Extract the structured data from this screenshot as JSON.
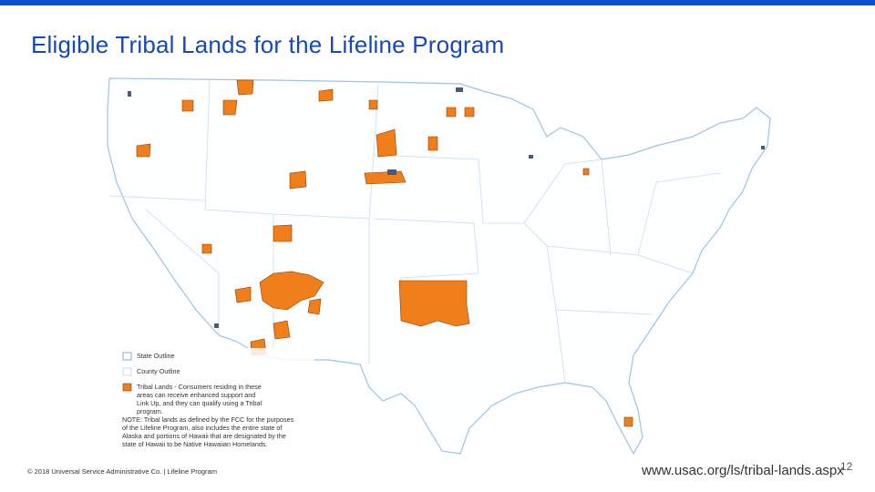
{
  "header": {
    "title": "Eligible Tribal Lands for the Lifeline Program"
  },
  "legend": {
    "items": [
      {
        "label": "State Outline"
      },
      {
        "label": "County Outline"
      },
      {
        "label": "Tribal Lands - Consumers residing in these areas can receive enhanced support and Link Up, and they can qualify using a Tribal program."
      }
    ],
    "note": "NOTE: Tribal lands as defined by the FCC for the purposes of the Lifeline Program, also includes the entire state of Alaska and portions of Hawaii that are designated by the state of Hawaii to be Native Hawaiian Homelands."
  },
  "footer": {
    "copyright": "© 2018 Universal Service Administrative Co. | Lifeline Program",
    "url": "www.usac.org/ls/tribal-lands.aspx",
    "page": "12"
  }
}
